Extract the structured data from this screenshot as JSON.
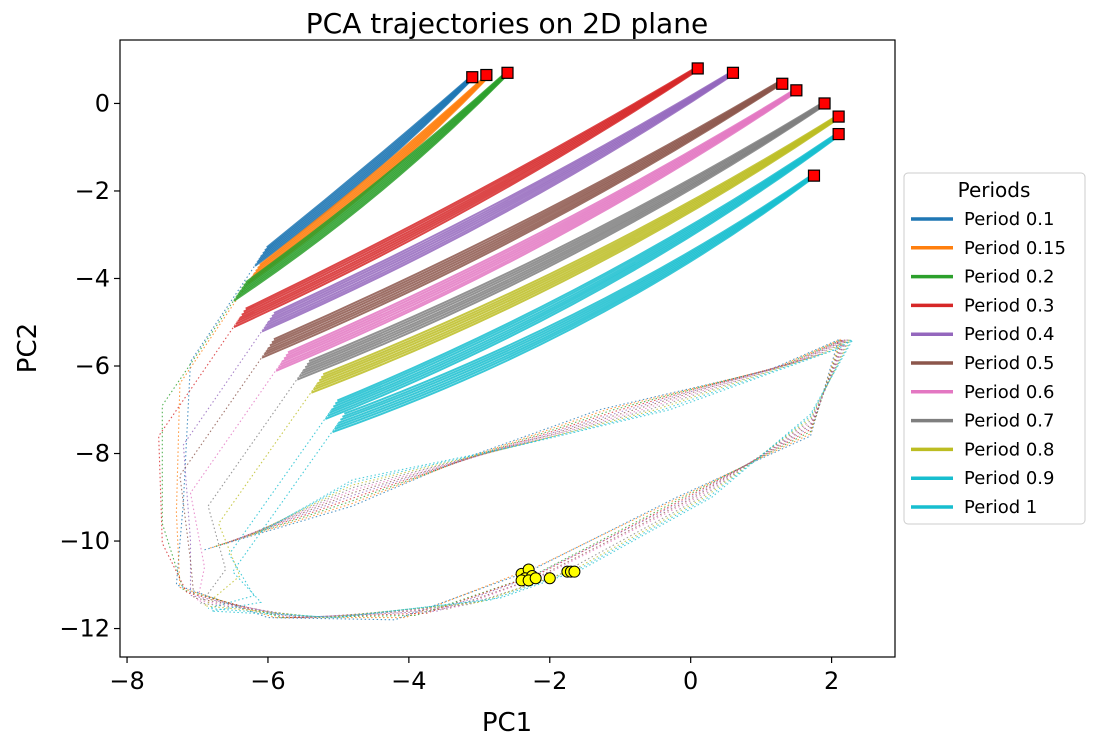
{
  "chart_data": {
    "type": "line",
    "title": "PCA trajectories on 2D plane",
    "xlabel": "PC1",
    "ylabel": "PC2",
    "xlim": [
      -8.1,
      2.9
    ],
    "ylim": [
      -12.65,
      1.45
    ],
    "xticks": [
      -8,
      -6,
      -4,
      -2,
      0,
      2
    ],
    "yticks": [
      0,
      -2,
      -4,
      -6,
      -8,
      -10,
      -12
    ],
    "xtick_labels": [
      "−8",
      "−6",
      "−4",
      "−2",
      "0",
      "2"
    ],
    "ytick_labels": [
      "0",
      "−2",
      "−4",
      "−6",
      "−8",
      "−10",
      "−12"
    ],
    "grid": false,
    "legend": {
      "title": "Periods",
      "position": "right, outside plot"
    },
    "series": [
      {
        "name": "Period 0.1",
        "color": "#1f77b4",
        "start": [
          -6.1,
          -3.5
        ],
        "end": [
          -3.1,
          0.6
        ]
      },
      {
        "name": "Period 0.15",
        "color": "#ff7f0e",
        "start": [
          -6.2,
          -3.9
        ],
        "end": [
          -2.9,
          0.6
        ]
      },
      {
        "name": "Period 0.2",
        "color": "#2ca02c",
        "start": [
          -6.4,
          -4.3
        ],
        "end": [
          -2.6,
          0.7
        ]
      },
      {
        "name": "Period 0.3",
        "color": "#d62728",
        "start": [
          -6.4,
          -4.9
        ],
        "end": [
          0.1,
          0.8
        ]
      },
      {
        "name": "Period 0.4",
        "color": "#9467bd",
        "start": [
          -6.0,
          -5.0
        ],
        "end": [
          0.6,
          0.7
        ]
      },
      {
        "name": "Period 0.5",
        "color": "#8c564b",
        "start": [
          -6.0,
          -5.6
        ],
        "end": [
          1.3,
          0.5
        ]
      },
      {
        "name": "Period 0.6",
        "color": "#e377c2",
        "start": [
          -5.8,
          -5.9
        ],
        "end": [
          1.5,
          0.3
        ]
      },
      {
        "name": "Period 0.7",
        "color": "#7f7f7f",
        "start": [
          -5.5,
          -6.1
        ],
        "end": [
          1.9,
          0.0
        ]
      },
      {
        "name": "Period 0.8",
        "color": "#bcbd22",
        "start": [
          -5.3,
          -6.4
        ],
        "end": [
          2.1,
          -0.3
        ]
      },
      {
        "name": "Period 0.9",
        "color": "#17becf",
        "start": [
          -5.1,
          -7.0
        ],
        "end": [
          2.1,
          -0.7
        ]
      },
      {
        "name": "Period 1",
        "color": "#17becf",
        "start": [
          -5.0,
          -7.3
        ],
        "end": [
          1.7,
          -1.7
        ]
      }
    ],
    "start_markers": {
      "shape": "square",
      "color": "#ff0000",
      "points": [
        [
          -3.1,
          0.6
        ],
        [
          -2.9,
          0.65
        ],
        [
          -2.6,
          0.7
        ],
        [
          0.1,
          0.8
        ],
        [
          0.6,
          0.7
        ],
        [
          1.3,
          0.45
        ],
        [
          1.5,
          0.3
        ],
        [
          1.9,
          0.0
        ],
        [
          2.1,
          -0.3
        ],
        [
          2.1,
          -0.7
        ],
        [
          1.75,
          -1.65
        ]
      ]
    },
    "end_markers": {
      "shape": "circle",
      "color": "#ffff00",
      "points": [
        [
          -2.4,
          -10.75
        ],
        [
          -2.3,
          -10.65
        ],
        [
          -2.35,
          -10.85
        ],
        [
          -2.25,
          -10.8
        ],
        [
          -2.4,
          -10.9
        ],
        [
          -2.3,
          -10.9
        ],
        [
          -2.2,
          -10.85
        ],
        [
          -2.0,
          -10.85
        ],
        [
          -1.75,
          -10.7
        ],
        [
          -1.7,
          -10.7
        ],
        [
          -1.65,
          -10.7
        ]
      ]
    }
  }
}
